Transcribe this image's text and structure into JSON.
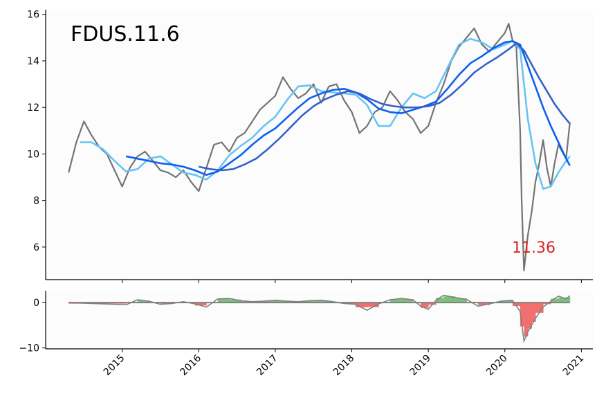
{
  "chart_data": [
    {
      "type": "line",
      "title": "FDUS.11.6",
      "xlabel": "",
      "ylabel": "",
      "xlim": [
        2014.0,
        2021.15
      ],
      "ylim": [
        4.6,
        16.2
      ],
      "yticks": [
        6,
        8,
        10,
        12,
        14,
        16
      ],
      "xticks": [
        "2015",
        "2016",
        "2017",
        "2018",
        "2019",
        "2020",
        "2021"
      ],
      "grid": false,
      "legend": "none",
      "last_value_label": "11.36",
      "colors": {
        "price": "#737373",
        "ma_short": "#66c4f5",
        "ma_mid": "#0a60f0",
        "ma_long": "#3561c9",
        "label": "#d62728"
      },
      "series": [
        {
          "key": "price",
          "x": [
            2014.3,
            2014.4,
            2014.5,
            2014.6,
            2014.7,
            2014.8,
            2014.9,
            2015.0,
            2015.1,
            2015.2,
            2015.3,
            2015.4,
            2015.5,
            2015.6,
            2015.7,
            2015.8,
            2015.9,
            2016.0,
            2016.1,
            2016.2,
            2016.3,
            2016.4,
            2016.5,
            2016.6,
            2016.7,
            2016.8,
            2016.9,
            2017.0,
            2017.1,
            2017.2,
            2017.3,
            2017.4,
            2017.5,
            2017.6,
            2017.7,
            2017.8,
            2017.9,
            2018.0,
            2018.1,
            2018.2,
            2018.3,
            2018.4,
            2018.5,
            2018.6,
            2018.7,
            2018.8,
            2018.9,
            2019.0,
            2019.1,
            2019.2,
            2019.3,
            2019.4,
            2019.5,
            2019.6,
            2019.7,
            2019.8,
            2019.9,
            2020.0,
            2020.05,
            2020.1,
            2020.15,
            2020.2,
            2020.22,
            2020.25,
            2020.3,
            2020.35,
            2020.4,
            2020.45,
            2020.5,
            2020.55,
            2020.6,
            2020.65,
            2020.7,
            2020.75,
            2020.8,
            2020.85
          ],
          "y": [
            9.2,
            10.5,
            11.4,
            10.8,
            10.3,
            10.0,
            9.3,
            8.6,
            9.4,
            9.9,
            10.1,
            9.7,
            9.3,
            9.2,
            9.0,
            9.3,
            8.8,
            8.4,
            9.4,
            10.4,
            10.5,
            10.1,
            10.7,
            10.9,
            11.4,
            11.9,
            12.2,
            12.5,
            13.3,
            12.8,
            12.4,
            12.6,
            13.0,
            12.2,
            12.9,
            13.0,
            12.3,
            11.8,
            10.9,
            11.2,
            11.8,
            12.0,
            12.7,
            12.3,
            11.8,
            11.5,
            10.9,
            11.2,
            12.2,
            13.0,
            14.0,
            14.6,
            15.0,
            15.4,
            14.7,
            14.4,
            14.8,
            15.2,
            15.6,
            14.9,
            14.6,
            11.0,
            8.0,
            5.0,
            6.5,
            7.5,
            8.8,
            9.6,
            10.6,
            9.4,
            8.6,
            9.6,
            10.4,
            10.1,
            9.8,
            11.36
          ]
        },
        {
          "key": "ma_short",
          "x": [
            2014.45,
            2014.6,
            2014.75,
            2014.9,
            2015.05,
            2015.2,
            2015.35,
            2015.5,
            2015.65,
            2015.8,
            2015.95,
            2016.1,
            2016.25,
            2016.4,
            2016.55,
            2016.7,
            2016.85,
            2017.0,
            2017.15,
            2017.3,
            2017.45,
            2017.6,
            2017.75,
            2017.9,
            2018.05,
            2018.2,
            2018.35,
            2018.5,
            2018.65,
            2018.8,
            2018.95,
            2019.1,
            2019.25,
            2019.4,
            2019.55,
            2019.7,
            2019.85,
            2020.0,
            2020.1,
            2020.2,
            2020.3,
            2020.4,
            2020.5,
            2020.6,
            2020.7,
            2020.8,
            2020.85
          ],
          "y": [
            10.5,
            10.5,
            10.2,
            9.7,
            9.25,
            9.35,
            9.8,
            9.9,
            9.55,
            9.2,
            9.1,
            8.9,
            9.3,
            9.95,
            10.35,
            10.7,
            11.2,
            11.6,
            12.3,
            12.9,
            12.95,
            12.7,
            12.65,
            12.6,
            12.55,
            12.1,
            11.2,
            11.2,
            12.0,
            12.6,
            12.4,
            12.7,
            13.7,
            14.7,
            14.95,
            14.8,
            14.5,
            14.7,
            14.85,
            14.5,
            11.5,
            9.6,
            8.5,
            8.6,
            9.2,
            9.7,
            9.9
          ]
        },
        {
          "key": "ma_mid",
          "x": [
            2015.05,
            2015.2,
            2015.35,
            2015.5,
            2015.65,
            2015.8,
            2015.95,
            2016.1,
            2016.25,
            2016.4,
            2016.55,
            2016.7,
            2016.85,
            2017.0,
            2017.15,
            2017.3,
            2017.45,
            2017.6,
            2017.75,
            2017.9,
            2018.05,
            2018.2,
            2018.35,
            2018.5,
            2018.65,
            2018.8,
            2018.95,
            2019.1,
            2019.25,
            2019.4,
            2019.55,
            2019.7,
            2019.85,
            2020.0,
            2020.1,
            2020.2,
            2020.3,
            2020.4,
            2020.5,
            2020.6,
            2020.7,
            2020.8,
            2020.85
          ],
          "y": [
            9.9,
            9.8,
            9.7,
            9.6,
            9.55,
            9.45,
            9.3,
            9.1,
            9.25,
            9.6,
            9.95,
            10.4,
            10.8,
            11.1,
            11.55,
            12.0,
            12.4,
            12.6,
            12.75,
            12.8,
            12.65,
            12.35,
            11.95,
            11.8,
            11.75,
            11.9,
            12.05,
            12.25,
            12.8,
            13.4,
            13.9,
            14.2,
            14.55,
            14.8,
            14.85,
            14.7,
            13.8,
            12.9,
            12.0,
            11.2,
            10.5,
            9.8,
            9.5
          ]
        },
        {
          "key": "ma_long",
          "x": [
            2016.0,
            2016.15,
            2016.3,
            2016.45,
            2016.6,
            2016.75,
            2016.9,
            2017.05,
            2017.2,
            2017.35,
            2017.5,
            2017.65,
            2017.8,
            2017.95,
            2018.1,
            2018.25,
            2018.4,
            2018.55,
            2018.7,
            2018.85,
            2019.0,
            2019.15,
            2019.3,
            2019.45,
            2019.6,
            2019.75,
            2019.9,
            2020.05,
            2020.15,
            2020.25,
            2020.35,
            2020.45,
            2020.55,
            2020.65,
            2020.75,
            2020.85
          ],
          "y": [
            9.45,
            9.35,
            9.3,
            9.35,
            9.55,
            9.8,
            10.2,
            10.65,
            11.15,
            11.65,
            12.05,
            12.35,
            12.55,
            12.7,
            12.6,
            12.35,
            12.15,
            12.05,
            12.0,
            12.0,
            12.05,
            12.2,
            12.55,
            13.0,
            13.5,
            13.85,
            14.15,
            14.5,
            14.75,
            14.45,
            13.85,
            13.25,
            12.7,
            12.15,
            11.7,
            11.3
          ]
        }
      ]
    },
    {
      "type": "bar",
      "title": "",
      "xlabel": "",
      "ylabel": "",
      "xlim": [
        2014.0,
        2021.15
      ],
      "ylim": [
        -10.2,
        2.6
      ],
      "yticks": [
        0,
        -10
      ],
      "xticks": [
        "2015",
        "2016",
        "2017",
        "2018",
        "2019",
        "2020",
        "2021"
      ],
      "colors": {
        "positive": "#7ac27a",
        "negative": "#f07070",
        "line": "#808080"
      },
      "x": [
        2014.3,
        2015.05,
        2015.2,
        2015.35,
        2015.5,
        2015.65,
        2015.8,
        2015.95,
        2016.1,
        2016.25,
        2016.4,
        2016.55,
        2016.7,
        2016.85,
        2017.0,
        2017.15,
        2017.3,
        2017.45,
        2017.6,
        2017.75,
        2017.9,
        2018.05,
        2018.2,
        2018.35,
        2018.5,
        2018.65,
        2018.8,
        2018.9,
        2019.0,
        2019.1,
        2019.2,
        2019.35,
        2019.5,
        2019.65,
        2019.8,
        2019.95,
        2020.1,
        2020.2,
        2020.25,
        2020.3,
        2020.35,
        2020.4,
        2020.5,
        2020.6,
        2020.7,
        2020.8,
        2020.85
      ],
      "y": [
        0,
        -0.5,
        0.6,
        0.3,
        -0.4,
        -0.2,
        0.2,
        -0.3,
        -1.0,
        0.8,
        0.9,
        0.4,
        0.2,
        0.3,
        0.5,
        0.3,
        0.2,
        0.4,
        0.5,
        0.2,
        -0.2,
        -0.4,
        -1.7,
        -0.3,
        0.6,
        0.9,
        0.6,
        -0.8,
        -1.5,
        0.5,
        1.6,
        1.1,
        0.7,
        -0.8,
        -0.3,
        0.3,
        0.5,
        -2.0,
        -8.5,
        -6.5,
        -5.0,
        -3.5,
        -1.0,
        0.3,
        1.4,
        0.8,
        1.5
      ]
    }
  ]
}
